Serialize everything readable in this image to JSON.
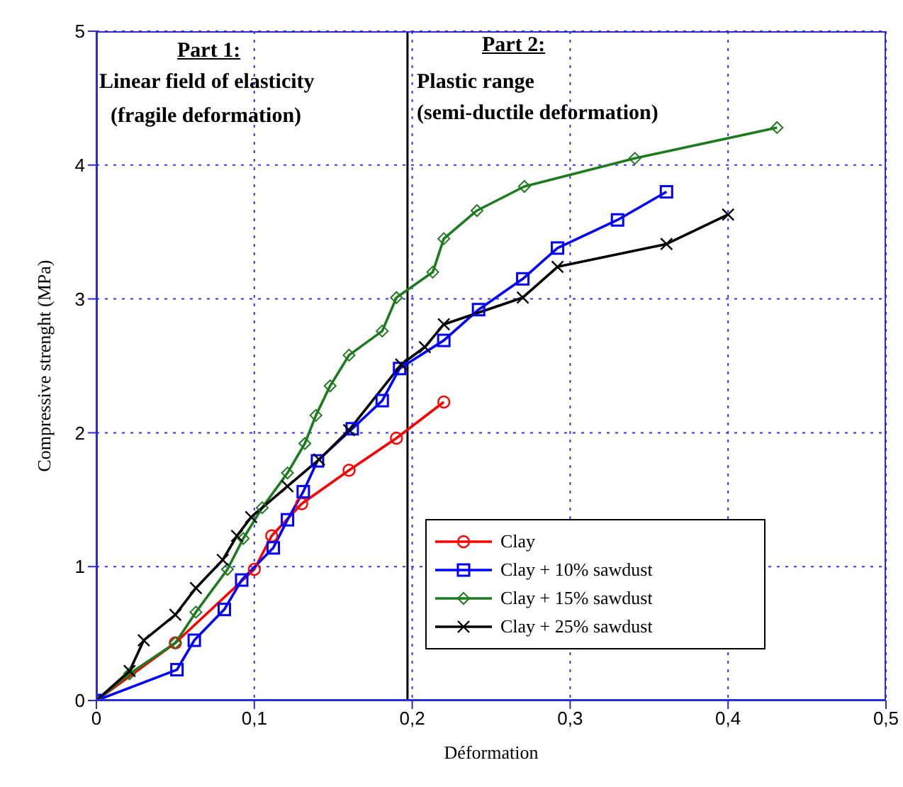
{
  "chart_data": {
    "type": "line",
    "xlabel": "Déformation",
    "ylabel": "Compressive strenght (MPa)",
    "xlim": [
      0,
      0.5
    ],
    "xticks": [
      0,
      {
        "value": 0.1,
        "label": "0,1"
      },
      {
        "value": 0.2,
        "label": "0,2"
      },
      {
        "value": 0.3,
        "label": "0,3"
      },
      {
        "value": 0.4,
        "label": "0,4"
      },
      {
        "value": 0.5,
        "label": "0,5"
      }
    ],
    "ylim": [
      0,
      5
    ],
    "yticks": [
      0,
      1,
      2,
      3,
      4,
      5
    ],
    "grid": true,
    "legend": "bottom right",
    "annotations": [
      "Part 1:",
      "Linear field of elasticity",
      "(fragile deformation)",
      "Part 2:",
      "Plastic range",
      "(semi-ductile deformation)"
    ],
    "ref_lines": [
      {
        "axis": "x",
        "value": 0.197,
        "color": "#000000",
        "line_style": "solid"
      }
    ],
    "series": [
      {
        "name": "Clay",
        "color": "#ff0000",
        "marker": "circle",
        "x": [
          0,
          0.05,
          0.1,
          0.111,
          0.13,
          0.16,
          0.19,
          0.22
        ],
        "values": [
          0,
          0.43,
          0.98,
          1.23,
          1.47,
          1.72,
          1.96,
          2.23
        ]
      },
      {
        "name": "Clay + 10% sawdust",
        "color": "#0000ff",
        "marker": "square",
        "x": [
          0,
          0.051,
          0.062,
          0.081,
          0.092,
          0.112,
          0.121,
          0.131,
          0.14,
          0.162,
          0.181,
          0.192,
          0.22,
          0.242,
          0.27,
          0.292,
          0.33,
          0.361
        ],
        "values": [
          0,
          0.23,
          0.45,
          0.68,
          0.9,
          1.14,
          1.35,
          1.56,
          1.79,
          2.03,
          2.24,
          2.48,
          2.69,
          2.92,
          3.15,
          3.38,
          3.59,
          3.8
        ]
      },
      {
        "name": "Clay + 15% sawdust",
        "color": "#1e7a1e",
        "marker": "diamond",
        "x": [
          0,
          0.021,
          0.05,
          0.063,
          0.083,
          0.093,
          0.105,
          0.121,
          0.132,
          0.139,
          0.148,
          0.16,
          0.181,
          0.19,
          0.213,
          0.22,
          0.241,
          0.271,
          0.341,
          0.431
        ],
        "values": [
          0,
          0.2,
          0.43,
          0.66,
          0.98,
          1.21,
          1.44,
          1.7,
          1.92,
          2.13,
          2.35,
          2.58,
          2.76,
          3.01,
          3.2,
          3.45,
          3.66,
          3.84,
          4.05,
          4.28
        ]
      },
      {
        "name": "Clay + 25% sawdust",
        "color": "#000000",
        "marker": "cross",
        "x": [
          0,
          0.021,
          0.03,
          0.05,
          0.063,
          0.08,
          0.089,
          0.098,
          0.121,
          0.141,
          0.16,
          0.193,
          0.208,
          0.22,
          0.27,
          0.292,
          0.361,
          0.4
        ],
        "values": [
          0,
          0.22,
          0.45,
          0.64,
          0.84,
          1.05,
          1.23,
          1.37,
          1.6,
          1.8,
          2.02,
          2.51,
          2.64,
          2.81,
          3.01,
          3.24,
          3.41,
          3.63
        ]
      }
    ]
  }
}
